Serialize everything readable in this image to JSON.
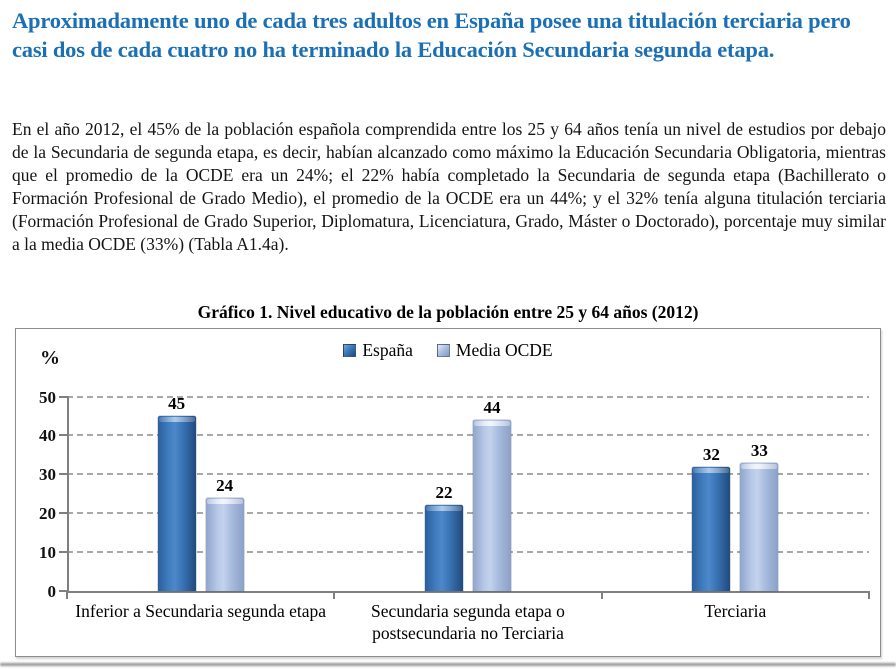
{
  "page": {
    "heading": "Aproximadamente uno de cada tres adultos en España posee una titulación terciaria pero casi dos de cada cuatro no ha terminado la Educación Secundaria segunda etapa.",
    "paragraph": "En el año 2012, el 45% de la población española comprendida entre los 25 y 64 años tenía un nivel de estudios por debajo de la Secundaria de segunda etapa, es decir, habían alcanzado como máximo la Educación Secundaria Obligatoria, mientras que el promedio de la OCDE era un 24%; el 22% había completado la Secundaria de segunda etapa (Bachillerato o Formación Profesional de Grado Medio), el promedio de la OCDE era un 44%; y el 32% tenía alguna titulación terciaria (Formación Profesional de Grado Superior, Diplomatura, Licenciatura, Grado, Máster o Doctorado), porcentaje muy similar a la media OCDE (33%) (Tabla A1.4a).",
    "heading_color": "#1B6FB5"
  },
  "chart_data": {
    "type": "bar",
    "title": "Gráfico 1. Nivel educativo de la población entre 25 y 64 años (2012)",
    "ylabel": "%",
    "ylim": [
      0,
      50
    ],
    "yticks": [
      0,
      10,
      20,
      30,
      40,
      50
    ],
    "grid": "horizontal-dashed",
    "legend_position": "top-center",
    "data_labels": true,
    "categories": [
      "Inferior a Secundaria segunda etapa",
      "Secundaria segunda etapa o postsecundaria no Terciaria",
      "Terciaria"
    ],
    "series": [
      {
        "name": "España",
        "values": [
          45,
          22,
          32
        ],
        "color": "#3271B2"
      },
      {
        "name": "Media OCDE",
        "values": [
          24,
          44,
          33
        ],
        "color": "#A9BDE0"
      }
    ]
  }
}
